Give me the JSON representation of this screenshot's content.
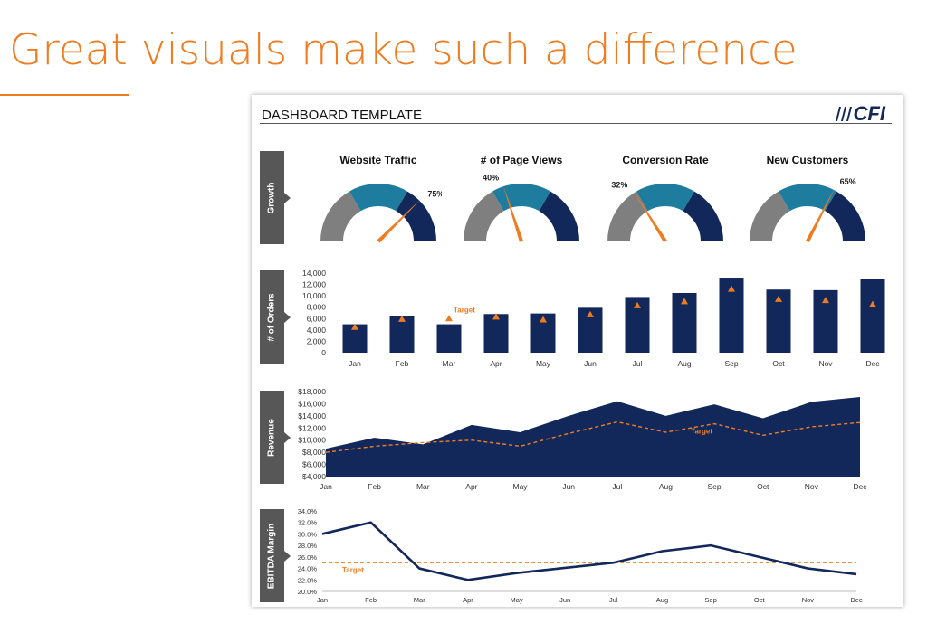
{
  "slide": {
    "title": "Great visuals make such a difference"
  },
  "dashboard": {
    "title": "DASHBOARD TEMPLATE",
    "logo": "CFI"
  },
  "colors": {
    "navy": "#13285a",
    "teal": "#1e7c9f",
    "gray": "#7f7f7f",
    "orange": "#ee7d22",
    "tab": "#575757",
    "accent": "#ee7d22"
  },
  "sections": {
    "growth": "Growth",
    "orders": "# of Orders",
    "revenue": "Revenue",
    "ebitda": "EBITDA Margin"
  },
  "gauges": [
    {
      "title": "Website Traffic",
      "value": 75,
      "label": "75%"
    },
    {
      "title": "# of Page Views",
      "value": 40,
      "label": "40%"
    },
    {
      "title": "Conversion Rate",
      "value": 32,
      "label": "32%"
    },
    {
      "title": "New Customers",
      "value": 65,
      "label": "65%"
    }
  ],
  "chart_data": [
    {
      "type": "bar",
      "categories": [
        "Jan",
        "Feb",
        "Mar",
        "Apr",
        "May",
        "Jun",
        "Jul",
        "Aug",
        "Sep",
        "Oct",
        "Nov",
        "Dec"
      ],
      "series": [
        {
          "values": [
            5000,
            6500,
            5000,
            6800,
            6900,
            7900,
            9800,
            10500,
            13200,
            11100,
            11000,
            13000
          ]
        },
        {
          "name": "Target",
          "values": [
            4500,
            5900,
            6000,
            6300,
            5800,
            6700,
            8300,
            9000,
            11200,
            9400,
            9200,
            8500
          ]
        }
      ],
      "yticks": [
        "14,000",
        "12,000",
        "10,000",
        "8,000",
        "6,000",
        "4,000",
        "2,000",
        "0"
      ],
      "ylim": [
        0,
        14000
      ],
      "annotation": "Target"
    },
    {
      "type": "area",
      "categories": [
        "Jan",
        "Feb",
        "Mar",
        "Apr",
        "May",
        "Jun",
        "Jul",
        "Aug",
        "Sep",
        "Oct",
        "Nov",
        "Dec"
      ],
      "series": [
        {
          "values": [
            8600,
            10400,
            9300,
            12500,
            11300,
            14000,
            16400,
            14000,
            15900,
            13600,
            16300,
            17100
          ]
        },
        {
          "name": "Target",
          "values": [
            8000,
            9000,
            9600,
            10000,
            9000,
            11100,
            13000,
            11300,
            12700,
            10800,
            12200,
            12900
          ]
        }
      ],
      "yticks": [
        "$18,000",
        "$16,000",
        "$14,000",
        "$12,000",
        "$10,000",
        "$8,000",
        "$6,000",
        "$4,000"
      ],
      "ylim": [
        4000,
        18000
      ],
      "annotation": "Target"
    },
    {
      "type": "line",
      "categories": [
        "Jan",
        "Feb",
        "Mar",
        "Apr",
        "May",
        "Jun",
        "Jul",
        "Aug",
        "Sep",
        "Oct",
        "Nov",
        "Dec"
      ],
      "series": [
        {
          "values": [
            30.0,
            32.0,
            24.0,
            22.0,
            23.2,
            24.1,
            25.0,
            27.0,
            28.0,
            26.0,
            24.0,
            23.0
          ]
        },
        {
          "name": "Target",
          "values": [
            25.0,
            25.0,
            25.0,
            25.0,
            25.0,
            25.0,
            25.0,
            25.0,
            25.0,
            25.0,
            25.0,
            25.0
          ]
        }
      ],
      "yticks": [
        "34.0%",
        "32.0%",
        "30.0%",
        "28.0%",
        "26.0%",
        "24.0%",
        "22.0%",
        "20.0%"
      ],
      "ylim": [
        20,
        34
      ],
      "annotation": "Target"
    }
  ]
}
